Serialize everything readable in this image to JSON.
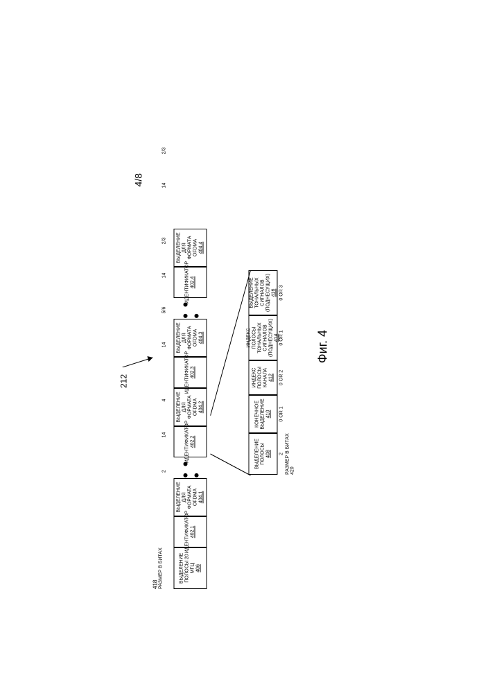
{
  "page_number": "4/8",
  "ref": "212",
  "label418_num": "418",
  "label418_txt": "РАЗМЕР В БИТАХ",
  "top": [
    {
      "name": "box-406",
      "w": "w60",
      "l1": "ВЫДЕЛЕНИЕ",
      "l2": "ПОЛОСЫ 20 МГЦ",
      "num": "406",
      "bits": "2"
    },
    {
      "name": "box-402-1",
      "w": "w45",
      "l1": "ИДЕНТИФИКАТОР",
      "l2": "",
      "num": "402.1",
      "bits": "14"
    },
    {
      "name": "box-404-1",
      "w": "w55",
      "l1": "ВЫДЕЛЕНИЕ",
      "l2": "ДЛЯ ФОРМАТА",
      "l3": "OFDMA",
      "num": "404.1",
      "bits": "4"
    },
    {
      "dots": true
    },
    {
      "name": "box-402-2",
      "w": "w45",
      "l1": "ИДЕНТИФИКАТОР",
      "l2": "",
      "num": "402.2",
      "bits": "14"
    },
    {
      "name": "box-404-2",
      "w": "w55",
      "l1": "ВЫДЕЛЕНИЕ",
      "l2": "ДЛЯ ФОРМАТА",
      "l3": "OFDMA",
      "num": "404.2",
      "bits": "5/6"
    },
    {
      "name": "box-402-3",
      "w": "w45",
      "l1": "ИДЕНТИФИКАТОР",
      "l2": "",
      "num": "402.3",
      "bits": "14"
    },
    {
      "name": "box-404-3",
      "w": "w55",
      "l1": "ВЫДЕЛЕНИЕ",
      "l2": "ДЛЯ ФОРМАТА",
      "l3": "OFDMA",
      "num": "404.3",
      "bits": "2/3"
    },
    {
      "dots": true
    },
    {
      "name": "box-402-4",
      "w": "w45",
      "l1": "ИДЕНТИФИКАТОР",
      "l2": "",
      "num": "402.4",
      "bits": "14"
    },
    {
      "name": "box-404-4",
      "w": "w55",
      "l1": "ВЫДЕЛЕНИЕ",
      "l2": "ДЛЯ ФОРМАТА",
      "l3": "OFDMA",
      "num": "404.4",
      "bits": "2/3"
    }
  ],
  "detail": [
    {
      "name": "box-408",
      "w": "w60",
      "l1": "ВЫДЕЛЕНИЕ",
      "l2": "ПОЛОСЫ",
      "num": "408",
      "bits": "2"
    },
    {
      "name": "box-410",
      "w": "w55",
      "l1": "КОНЕЧНОЕ",
      "l2": "ВЫДЕЛЕНИЕ",
      "num": "410",
      "bits": "0 OR 1"
    },
    {
      "name": "box-412",
      "w": "w50",
      "l1": "ИНДЕКС",
      "l2": "ПОЛОСЫ",
      "l3": "КАНАЛА",
      "num": "412",
      "bits": "0 OR 2"
    },
    {
      "name": "box-414",
      "w": "w65",
      "l1": "ИНДЕКС ПОЛОСЫ",
      "l2": "ТОНАЛЬНЫХ",
      "l3": "СИГНАЛОВ",
      "l4": "(ПОДНЕСУЩИХ)",
      "num": "414",
      "bits": "0 OR 1"
    },
    {
      "name": "box-416",
      "w": "w65",
      "l1": "ВЫДЕЛЕНИЕ",
      "l2": "ТОНАЛЬНЫХ",
      "l3": "СИГНАЛОВ",
      "l4": "(ПОДНЕСУЩИХ)",
      "num": "416",
      "bits": "0 OR 3"
    }
  ],
  "label420_txt": "РАЗМЕР В БИТАХ",
  "label420_num": "420",
  "figure": "Фиг. 4",
  "colors": {
    "border": "#000000",
    "bg": "#ffffff",
    "text": "#000000"
  }
}
